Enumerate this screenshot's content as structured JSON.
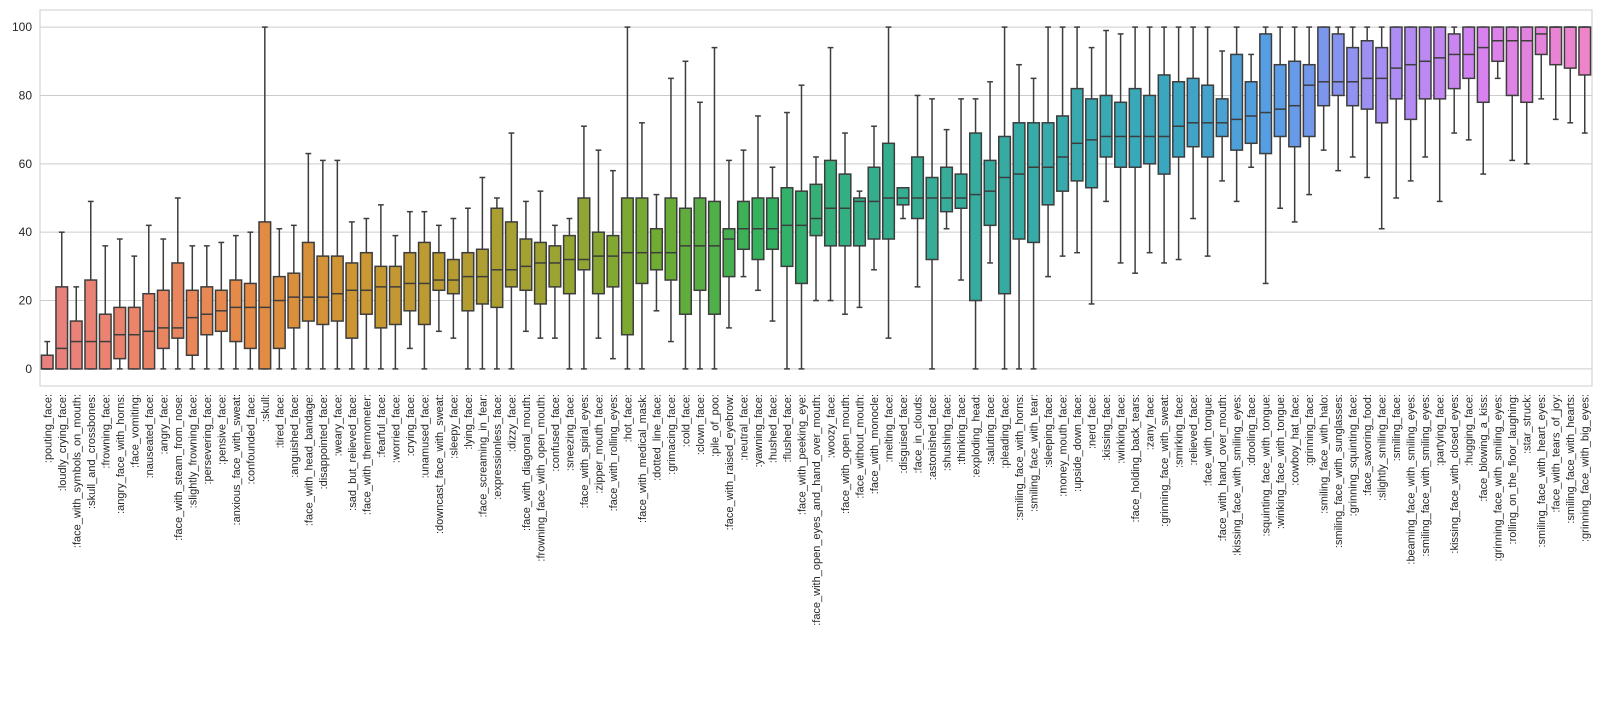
{
  "chart_data": {
    "type": "box",
    "title": "",
    "xlabel": "",
    "ylabel": "",
    "ylim": [
      -5,
      105
    ],
    "yticks": [
      0,
      20,
      40,
      60,
      80,
      100
    ],
    "grid": true,
    "categories": [
      ":pouting_face:",
      ":loudly_crying_face:",
      ":face_with_symbols_on_mouth:",
      ":skull_and_crossbones:",
      ":frowning_face:",
      ":angry_face_with_horns:",
      ":face_vomiting:",
      ":nauseated_face:",
      ":angry_face:",
      ":face_with_steam_from_nose:",
      ":slightly_frowning_face:",
      ":persevering_face:",
      ":pensive_face:",
      ":anxious_face_with_sweat:",
      ":confounded_face:",
      ":skull:",
      ":tired_face:",
      ":anguished_face:",
      ":face_with_head_bandage:",
      ":disappointed_face:",
      ":weary_face:",
      ":sad_but_relieved_face:",
      ":face_with_thermometer:",
      ":fearful_face:",
      ":worried_face:",
      ":crying_face:",
      ":unamused_face:",
      ":downcast_face_with_sweat:",
      ":sleepy_face:",
      ":lying_face:",
      ":face_screaming_in_fear:",
      ":expressionless_face:",
      ":dizzy_face:",
      ":face_with_diagonal_mouth:",
      ":frowning_face_with_open_mouth:",
      ":confused_face:",
      ":sneezing_face:",
      ":face_with_spiral_eyes:",
      ":zipper_mouth_face:",
      ":face_with_rolling_eyes:",
      ":hot_face:",
      ":face_with_medical_mask:",
      ":dotted_line_face:",
      ":grimacing_face:",
      ":cold_face:",
      ":clown_face:",
      ":pile_of_poo:",
      ":face_with_raised_eyebrow:",
      ":neutral_face:",
      ":yawning_face:",
      ":hushed_face:",
      ":flushed_face:",
      ":face_with_peeking_eye:",
      ":face_with_open_eyes_and_hand_over_mouth:",
      ":woozy_face:",
      ":face_with_open_mouth:",
      ":face_without_mouth:",
      ":face_with_monocle:",
      ":melting_face:",
      ":disguised_face:",
      ":face_in_clouds:",
      ":astonished_face:",
      ":shushing_face:",
      ":thinking_face:",
      ":exploding_head:",
      ":saluting_face:",
      ":pleading_face:",
      ":smiling_face_with_horns:",
      ":smiling_face_with_tear:",
      ":sleeping_face:",
      ":money_mouth_face:",
      ":upside_down_face:",
      ":nerd_face:",
      ":kissing_face:",
      ":winking_face:",
      ":face_holding_back_tears:",
      ":zany_face:",
      ":grinning_face_with_sweat:",
      ":smirking_face:",
      ":relieved_face:",
      ":face_with_tongue:",
      ":face_with_hand_over_mouth:",
      ":kissing_face_with_smiling_eyes:",
      ":drooling_face:",
      ":squinting_face_with_tongue:",
      ":winking_face_with_tongue:",
      ":cowboy_hat_face:",
      ":grinning_face:",
      ":smiling_face_with_halo:",
      ":smiling_face_with_sunglasses:",
      ":grinning_squinting_face:",
      ":face_savoring_food:",
      ":slightly_smiling_face:",
      ":smiling_face:",
      ":beaming_face_with_smiling_eyes:",
      ":smiling_face_with_smiling_eyes:",
      ":partying_face:",
      ":kissing_face_with_closed_eyes:",
      ":hugging_face:",
      ":face_blowing_a_kiss:",
      ":grinning_face_with_smiling_eyes:",
      ":rolling_on_the_floor_laughing:",
      ":star_struck:",
      ":smiling_face_with_heart_eyes:",
      ":face_with_tears_of_joy:",
      ":smiling_face_with_hearts:",
      ":grinning_face_with_big_eyes:"
    ],
    "boxes": [
      [
        0,
        0,
        0,
        4,
        8
      ],
      [
        0,
        0,
        6,
        24,
        40
      ],
      [
        0,
        0,
        8,
        14,
        24
      ],
      [
        0,
        0,
        8,
        26,
        49
      ],
      [
        0,
        0,
        8,
        16,
        36
      ],
      [
        0,
        3,
        10,
        18,
        38
      ],
      [
        0,
        0,
        10,
        18,
        33
      ],
      [
        0,
        0,
        11,
        22,
        42
      ],
      [
        0,
        6,
        12,
        23,
        38
      ],
      [
        0,
        9,
        12,
        31,
        50
      ],
      [
        0,
        4,
        15,
        23,
        36
      ],
      [
        0,
        10,
        16,
        24,
        36
      ],
      [
        0,
        11,
        17,
        23,
        37
      ],
      [
        0,
        8,
        18,
        26,
        39
      ],
      [
        0,
        6,
        18,
        25,
        40
      ],
      [
        0,
        0,
        18,
        43,
        100
      ],
      [
        0,
        6,
        20,
        27,
        41
      ],
      [
        0,
        12,
        21,
        28,
        42
      ],
      [
        0,
        14,
        21,
        37,
        63
      ],
      [
        0,
        13,
        21,
        33,
        61
      ],
      [
        0,
        14,
        22,
        33,
        61
      ],
      [
        0,
        9,
        23,
        31,
        43
      ],
      [
        0,
        16,
        23,
        34,
        44
      ],
      [
        0,
        12,
        24,
        30,
        48
      ],
      [
        0,
        13,
        24,
        30,
        39
      ],
      [
        6,
        17,
        25,
        34,
        46
      ],
      [
        0,
        13,
        25,
        37,
        46
      ],
      [
        11,
        23,
        26,
        34,
        42
      ],
      [
        9,
        22,
        26,
        32,
        44
      ],
      [
        0,
        17,
        27,
        34,
        47
      ],
      [
        0,
        19,
        27,
        35,
        56
      ],
      [
        0,
        18,
        29,
        47,
        50
      ],
      [
        0,
        24,
        29,
        43,
        69
      ],
      [
        11,
        23,
        30,
        38,
        49
      ],
      [
        9,
        19,
        31,
        37,
        52
      ],
      [
        9,
        24,
        31,
        36,
        42
      ],
      [
        0,
        22,
        32,
        39,
        44
      ],
      [
        0,
        29,
        32,
        50,
        71
      ],
      [
        9,
        22,
        33,
        40,
        64
      ],
      [
        3,
        24,
        33,
        39,
        58
      ],
      [
        0,
        10,
        34,
        50,
        100
      ],
      [
        0,
        25,
        34,
        50,
        72
      ],
      [
        17,
        29,
        34,
        41,
        51
      ],
      [
        8,
        26,
        34,
        50,
        85
      ],
      [
        0,
        16,
        36,
        47,
        90
      ],
      [
        0,
        23,
        36,
        50,
        78
      ],
      [
        0,
        16,
        36,
        49,
        94
      ],
      [
        12,
        27,
        38,
        41,
        61
      ],
      [
        27,
        35,
        41,
        49,
        64
      ],
      [
        23,
        32,
        41,
        50,
        74
      ],
      [
        14,
        35,
        41,
        50,
        59
      ],
      [
        0,
        30,
        42,
        53,
        75
      ],
      [
        0,
        25,
        42,
        52,
        83
      ],
      [
        20,
        39,
        44,
        54,
        62
      ],
      [
        20,
        36,
        47,
        61,
        94
      ],
      [
        16,
        36,
        47,
        57,
        69
      ],
      [
        18,
        36,
        49,
        50,
        52
      ],
      [
        29,
        38,
        49,
        59,
        71
      ],
      [
        9,
        38,
        50,
        66,
        100
      ],
      [
        44,
        48,
        50,
        53,
        53
      ],
      [
        24,
        44,
        50,
        62,
        80
      ],
      [
        0,
        32,
        50,
        56,
        79
      ],
      [
        41,
        46,
        50,
        59,
        70
      ],
      [
        26,
        47,
        50,
        57,
        79
      ],
      [
        0,
        20,
        51,
        69,
        79
      ],
      [
        31,
        42,
        52,
        61,
        84
      ],
      [
        0,
        22,
        56,
        68,
        100
      ],
      [
        0,
        38,
        57,
        72,
        89
      ],
      [
        0,
        37,
        59,
        72,
        85
      ],
      [
        27,
        48,
        59,
        72,
        100
      ],
      [
        33,
        52,
        62,
        74,
        100
      ],
      [
        34,
        55,
        66,
        82,
        100
      ],
      [
        19,
        53,
        67,
        79,
        94
      ],
      [
        49,
        62,
        68,
        80,
        99
      ],
      [
        31,
        59,
        68,
        78,
        98
      ],
      [
        28,
        59,
        68,
        82,
        100
      ],
      [
        34,
        60,
        68,
        80,
        100
      ],
      [
        31,
        57,
        68,
        86,
        100
      ],
      [
        32,
        62,
        71,
        84,
        100
      ],
      [
        44,
        65,
        72,
        85,
        100
      ],
      [
        33,
        62,
        72,
        83,
        100
      ],
      [
        55,
        68,
        72,
        79,
        93
      ],
      [
        49,
        64,
        73,
        92,
        100
      ],
      [
        59,
        66,
        74,
        84,
        92
      ],
      [
        25,
        63,
        75,
        98,
        100
      ],
      [
        47,
        68,
        76,
        89,
        100
      ],
      [
        43,
        65,
        77,
        90,
        100
      ],
      [
        51,
        68,
        83,
        89,
        100
      ],
      [
        64,
        77,
        84,
        100,
        100
      ],
      [
        58,
        80,
        84,
        98,
        100
      ],
      [
        62,
        77,
        84,
        94,
        100
      ],
      [
        56,
        76,
        85,
        96,
        100
      ],
      [
        41,
        72,
        85,
        94,
        100
      ],
      [
        50,
        79,
        88,
        100,
        100
      ],
      [
        55,
        73,
        89,
        100,
        100
      ],
      [
        62,
        79,
        90,
        100,
        100
      ],
      [
        49,
        79,
        91,
        100,
        100
      ],
      [
        69,
        82,
        92,
        98,
        100
      ],
      [
        67,
        85,
        92,
        100,
        100
      ],
      [
        57,
        78,
        94,
        100,
        100
      ],
      [
        85,
        90,
        96,
        100,
        100
      ],
      [
        61,
        80,
        96,
        100,
        100
      ],
      [
        60,
        78,
        96,
        100,
        100
      ],
      [
        79,
        92,
        98,
        100,
        100
      ],
      [
        73,
        89,
        100,
        100,
        100
      ],
      [
        72,
        88,
        100,
        100,
        100
      ],
      [
        69,
        86,
        100,
        100,
        100
      ]
    ],
    "box_fields": [
      "whisker_low",
      "q1",
      "median",
      "q3",
      "whisker_high"
    ],
    "colors": [
      "#e8817f",
      "#eb8466",
      "#e58b45",
      "#cc9632",
      "#b69c32",
      "#9aa332",
      "#6eac32",
      "#32b160",
      "#35ae8a",
      "#36ac9d",
      "#38aaad",
      "#3aa6c1",
      "#5a9de7",
      "#a58ef4",
      "#d882f0",
      "#f084c9"
    ]
  }
}
